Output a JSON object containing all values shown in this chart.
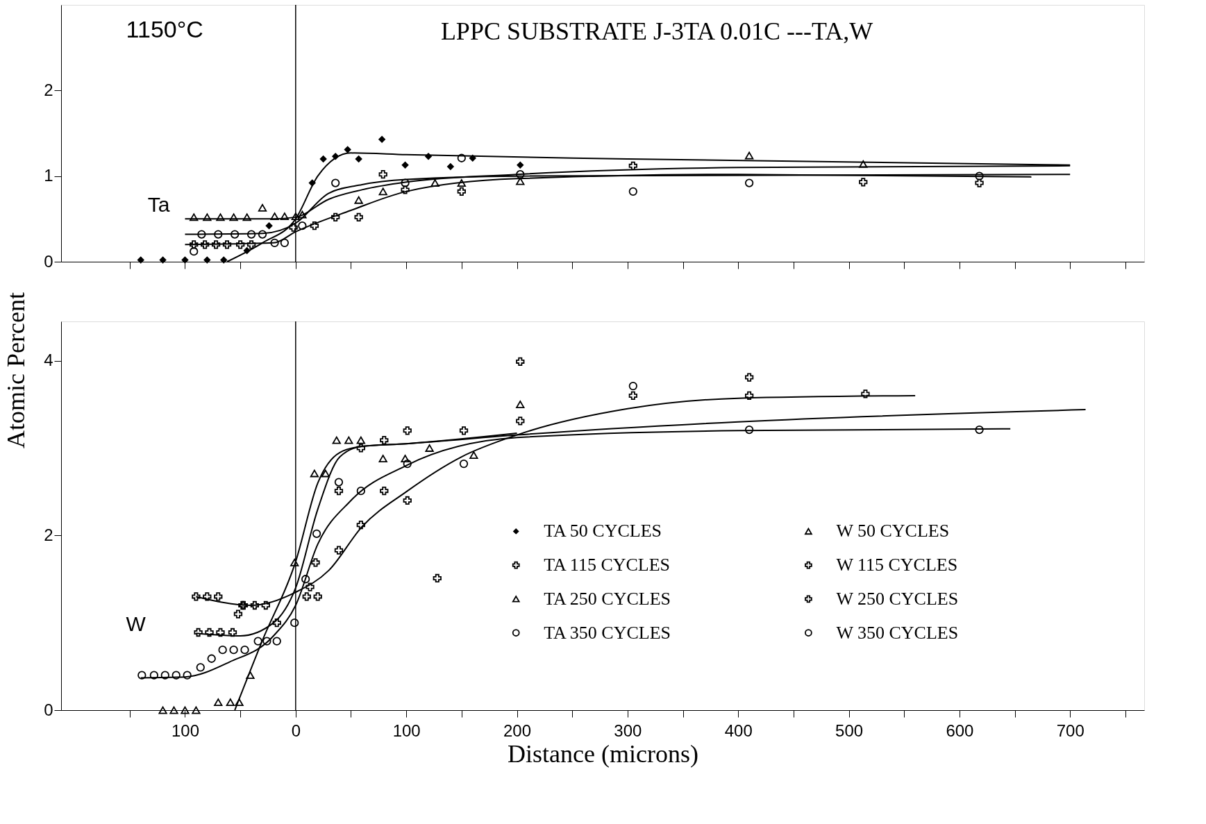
{
  "chart_data": [
    {
      "type": "scatter",
      "title": "LPPC SUBSTRATE J-3TA 0.01C ---TA,W",
      "annotations": [
        "1150°C",
        "Ta"
      ],
      "xlim": [
        -212,
        767
      ],
      "ylim": [
        0,
        3
      ],
      "yticks": [
        0,
        1,
        2
      ],
      "xticks": [
        {
          "value": -150,
          "label": null
        },
        {
          "value": -100,
          "label": null
        },
        {
          "value": -50,
          "label": null
        },
        {
          "value": 0,
          "label": null
        },
        {
          "value": 50,
          "label": null
        },
        {
          "value": 100,
          "label": null
        },
        {
          "value": 150,
          "label": null
        },
        {
          "value": 200,
          "label": null
        },
        {
          "value": 250,
          "label": null
        },
        {
          "value": 300,
          "label": null
        },
        {
          "value": 350,
          "label": null
        },
        {
          "value": 400,
          "label": null
        },
        {
          "value": 450,
          "label": null
        },
        {
          "value": 500,
          "label": null
        },
        {
          "value": 550,
          "label": null
        },
        {
          "value": 600,
          "label": null
        },
        {
          "value": 650,
          "label": null
        },
        {
          "value": 700,
          "label": null
        },
        {
          "value": 750,
          "label": null
        }
      ],
      "tick_labels": "y",
      "grid": false,
      "legend": "bottom right",
      "ref_lines": [
        {
          "axis": "x",
          "value": 0,
          "label": null
        }
      ],
      "series": [
        {
          "name": "TA 50 CYCLES",
          "type": "scatter",
          "marker": "diamond",
          "color": "#000000",
          "x": [
            -140,
            -120,
            -100,
            -80,
            -65,
            -44,
            -24,
            15,
            25,
            36,
            47,
            57,
            78,
            99,
            120,
            140,
            160,
            203
          ],
          "values": [
            0.02,
            0.02,
            0.02,
            0.02,
            0.02,
            0.13,
            0.42,
            0.92,
            1.2,
            1.23,
            1.31,
            1.2,
            1.43,
            1.13,
            1.23,
            1.11,
            1.21,
            1.13
          ]
        },
        {
          "name": "TA 115 CYCLES",
          "type": "scatter",
          "marker": "cross",
          "color": "#000000",
          "x": [
            -92,
            -82,
            -72,
            -62,
            -50,
            -40,
            -2,
            17,
            36,
            57,
            79,
            99,
            150,
            305,
            513,
            618
          ],
          "values": [
            0.2,
            0.2,
            0.2,
            0.2,
            0.2,
            0.2,
            0.4,
            0.42,
            0.52,
            0.52,
            1.02,
            0.84,
            0.82,
            1.12,
            0.93,
            0.92
          ]
        },
        {
          "name": "TA 250 CYCLES",
          "type": "scatter",
          "marker": "triangle",
          "color": "#000000",
          "x": [
            -92,
            -80,
            -68,
            -56,
            -44,
            -30,
            -19,
            -10,
            0,
            6,
            57,
            79,
            126,
            150,
            203,
            410,
            513
          ],
          "values": [
            0.52,
            0.52,
            0.52,
            0.52,
            0.52,
            0.63,
            0.53,
            0.53,
            0.53,
            0.55,
            0.72,
            0.82,
            0.92,
            0.92,
            0.94,
            1.24,
            1.14
          ]
        },
        {
          "name": "TA 350 CYCLES",
          "type": "scatter",
          "marker": "circle",
          "color": "#000000",
          "x": [
            -92,
            -85,
            -70,
            -55,
            -40,
            -30,
            -19,
            -10,
            6,
            36,
            99,
            150,
            203,
            305,
            410,
            618
          ],
          "values": [
            0.12,
            0.32,
            0.32,
            0.32,
            0.32,
            0.32,
            0.22,
            0.22,
            0.42,
            0.92,
            0.92,
            1.21,
            1.02,
            0.82,
            0.92,
            1.0
          ]
        },
        {
          "type": "line",
          "color": "#000000",
          "x": [
            -62,
            -30,
            0,
            20,
            50,
            100,
            300,
            700
          ],
          "values": [
            0,
            0.22,
            0.5,
            1.0,
            1.27,
            1.25,
            1.2,
            1.13
          ]
        },
        {
          "type": "line",
          "color": "#000000",
          "x": [
            -100,
            -20,
            0,
            50,
            100,
            200,
            400,
            665
          ],
          "values": [
            0.2,
            0.22,
            0.35,
            0.6,
            0.82,
            0.97,
            1.02,
            0.99
          ]
        },
        {
          "type": "line",
          "color": "#000000",
          "x": [
            -100,
            -20,
            0,
            30,
            60,
            100,
            200,
            400,
            700
          ],
          "values": [
            0.5,
            0.5,
            0.52,
            0.73,
            0.84,
            0.93,
            1.02,
            1.1,
            1.12
          ]
        },
        {
          "type": "line",
          "color": "#000000",
          "x": [
            -100,
            -30,
            0,
            30,
            60,
            100,
            200,
            700
          ],
          "values": [
            0.32,
            0.33,
            0.45,
            0.8,
            0.9,
            0.96,
            1.0,
            1.02
          ]
        }
      ]
    },
    {
      "type": "scatter",
      "xlabel": "Distance (microns)",
      "ylabel": "Atomic Percent",
      "annotations": [
        "W"
      ],
      "xlim": [
        -212,
        767
      ],
      "ylim": [
        0,
        4.45
      ],
      "yticks": [
        0,
        2,
        4
      ],
      "xticks": [
        {
          "value": -150,
          "label": null
        },
        {
          "value": -100,
          "label": "100"
        },
        {
          "value": -50,
          "label": null
        },
        {
          "value": 0,
          "label": "0"
        },
        {
          "value": 50,
          "label": null
        },
        {
          "value": 100,
          "label": "100"
        },
        {
          "value": 150,
          "label": null
        },
        {
          "value": 200,
          "label": "200"
        },
        {
          "value": 250,
          "label": null
        },
        {
          "value": 300,
          "label": "300"
        },
        {
          "value": 350,
          "label": null
        },
        {
          "value": 400,
          "label": "400"
        },
        {
          "value": 450,
          "label": null
        },
        {
          "value": 500,
          "label": "500"
        },
        {
          "value": 550,
          "label": null
        },
        {
          "value": 600,
          "label": "600"
        },
        {
          "value": 650,
          "label": null
        },
        {
          "value": 700,
          "label": "700"
        },
        {
          "value": 750,
          "label": null
        }
      ],
      "grid": false,
      "legend": "bottom right",
      "ref_lines": [
        {
          "axis": "x",
          "value": 0,
          "label": null
        }
      ],
      "series": [
        {
          "name": "W 50 CYCLES",
          "type": "scatter",
          "marker": "triangle",
          "color": "#000000",
          "x": [
            -120,
            -110,
            -100,
            -90,
            -70,
            -59,
            -51,
            -41,
            -1,
            17,
            27,
            37,
            48,
            59,
            79,
            99,
            121,
            161,
            203
          ],
          "values": [
            0,
            0,
            0,
            0,
            0.09,
            0.09,
            0.09,
            0.4,
            1.69,
            2.71,
            2.71,
            3.09,
            3.09,
            3.09,
            2.88,
            2.88,
            3.0,
            2.92,
            3.5
          ]
        },
        {
          "name": "W 115 CYCLES",
          "type": "scatter",
          "marker": "cross",
          "color": "#000000",
          "x": [
            -88,
            -78,
            -68,
            -57,
            -47,
            -27,
            -17,
            13,
            18,
            39,
            59,
            80,
            101,
            152,
            203,
            410
          ],
          "values": [
            0.89,
            0.89,
            0.89,
            0.89,
            1.2,
            1.2,
            1.0,
            1.41,
            1.69,
            2.51,
            3.0,
            3.09,
            3.2,
            3.2,
            3.99,
            3.81
          ]
        },
        {
          "name": "W 250 CYCLES",
          "type": "scatter",
          "marker": "cross",
          "color": "#000000",
          "x": [
            -90,
            -80,
            -70,
            -52,
            -48,
            -37,
            10,
            20,
            39,
            59,
            80,
            101,
            128,
            203,
            305,
            410,
            515
          ],
          "values": [
            1.3,
            1.3,
            1.3,
            1.1,
            1.2,
            1.2,
            1.3,
            1.3,
            1.83,
            2.12,
            2.51,
            2.4,
            1.51,
            3.31,
            3.6,
            3.6,
            3.62
          ]
        },
        {
          "name": "W 350 CYCLES",
          "type": "scatter",
          "marker": "circle",
          "color": "#000000",
          "x": [
            -139,
            -128,
            -118,
            -108,
            -98,
            -86,
            -76,
            -66,
            -56,
            -46,
            -34,
            -26,
            -17,
            -1,
            9,
            19,
            39,
            59,
            101,
            152,
            305,
            410,
            618
          ],
          "values": [
            0.4,
            0.4,
            0.4,
            0.4,
            0.4,
            0.49,
            0.59,
            0.69,
            0.69,
            0.69,
            0.79,
            0.79,
            0.79,
            1.0,
            1.5,
            2.02,
            2.61,
            2.51,
            2.82,
            2.82,
            3.71,
            3.21,
            3.21
          ]
        },
        {
          "type": "line",
          "color": "#000000",
          "x": [
            -55,
            -30,
            0,
            20,
            40,
            60,
            100,
            200,
            400,
            714
          ],
          "values": [
            0,
            0.8,
            1.7,
            2.6,
            2.95,
            3.02,
            3.05,
            3.15,
            3.3,
            3.44
          ]
        },
        {
          "type": "line",
          "color": "#000000",
          "x": [
            -90,
            -50,
            -20,
            0,
            20,
            40,
            60,
            100,
            200
          ],
          "values": [
            0.88,
            0.85,
            1.0,
            1.4,
            2.3,
            2.9,
            3.02,
            3.05,
            3.17
          ]
        },
        {
          "type": "line",
          "color": "#000000",
          "x": [
            -90,
            -40,
            0,
            30,
            60,
            100,
            150,
            200,
            300,
            400,
            560
          ],
          "values": [
            1.3,
            1.2,
            1.35,
            1.6,
            2.1,
            2.5,
            2.9,
            3.15,
            3.45,
            3.57,
            3.6
          ]
        },
        {
          "type": "line",
          "color": "#000000",
          "x": [
            -140,
            -100,
            -60,
            -20,
            0,
            20,
            50,
            100,
            200,
            400,
            646
          ],
          "values": [
            0.37,
            0.38,
            0.55,
            0.85,
            1.2,
            1.9,
            2.4,
            2.8,
            3.12,
            3.2,
            3.22
          ]
        }
      ]
    }
  ]
}
